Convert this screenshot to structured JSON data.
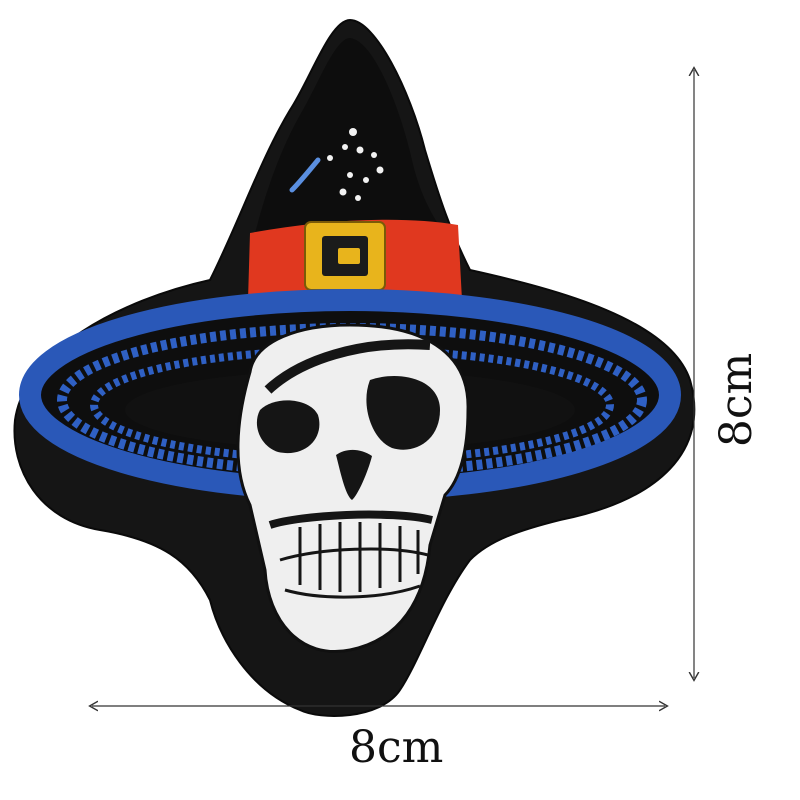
{
  "image": {
    "subject": "embroidered-patch",
    "colors": {
      "background": "#ffffff",
      "patch_border": "#151515",
      "hat": "#0e0e0e",
      "brim_blue": "#2a58b8",
      "band_red": "#e0381f",
      "buckle_gold": "#e8b41c",
      "skull": "#efefef",
      "skull_shadow": "#1a1a1a"
    }
  },
  "dimensions": {
    "width_label": "8cm",
    "height_label": "8cm"
  }
}
